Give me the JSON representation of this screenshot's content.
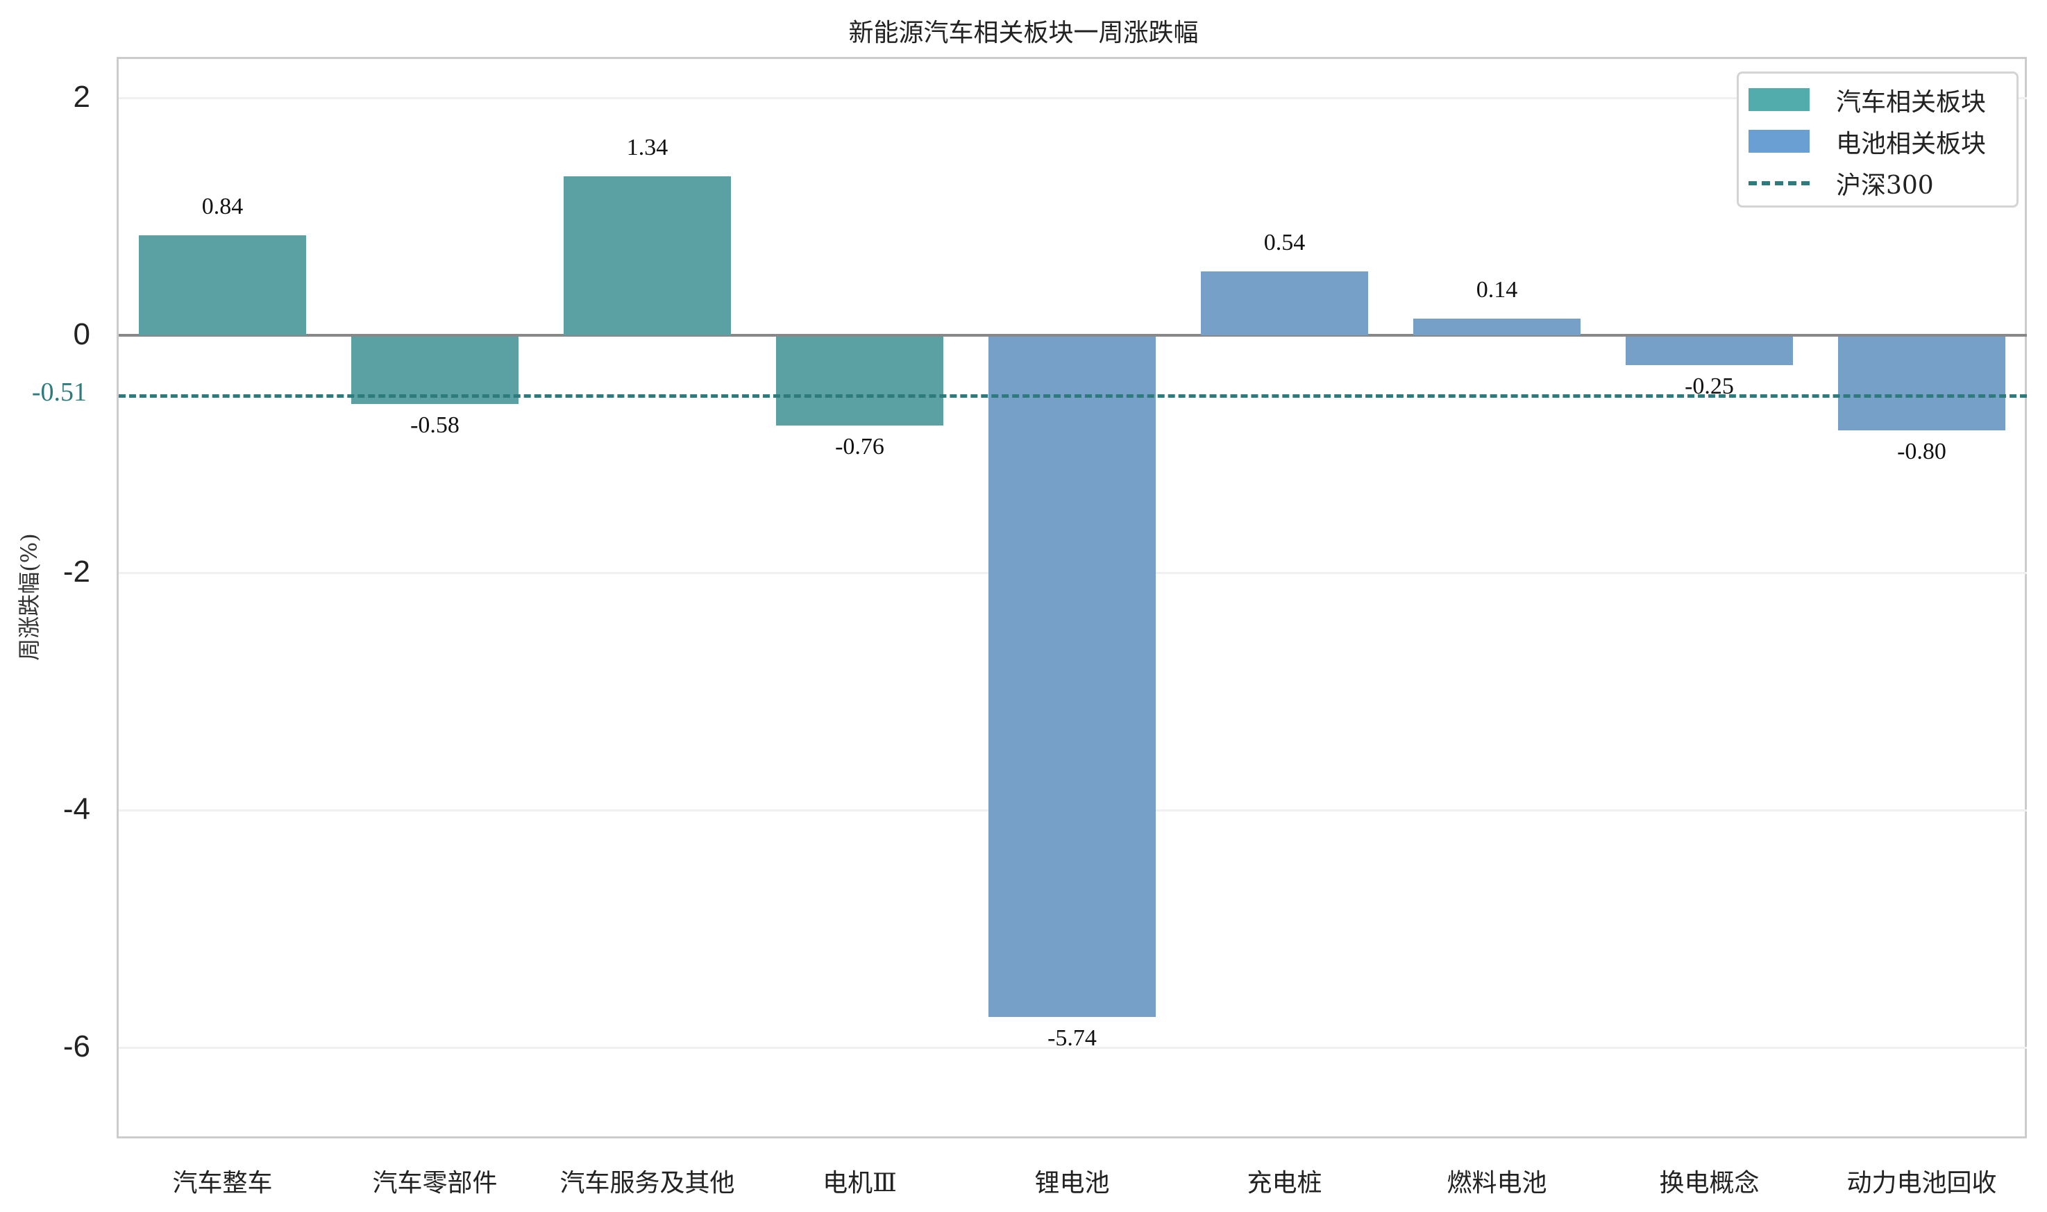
{
  "chart_data": {
    "type": "bar",
    "title": "新能源汽车相关板块一周涨跌幅",
    "xlabel": "",
    "ylabel": "周涨跌幅(%)",
    "ylim": [
      -6.7,
      2.4
    ],
    "yticks": [
      "2",
      "0",
      "-2",
      "-4",
      "-6"
    ],
    "grid": true,
    "legend_position": "upper right",
    "categories": [
      "汽车整车",
      "汽车零部件",
      "汽车服务及其他",
      "电机Ⅲ",
      "锂电池",
      "充电桩",
      "燃料电池",
      "换电概念",
      "动力电池回收"
    ],
    "values": [
      0.84,
      -0.58,
      1.34,
      -0.76,
      -5.74,
      0.54,
      0.14,
      -0.25,
      -0.8
    ],
    "value_labels": [
      "0.84",
      "-0.58",
      "1.34",
      "-0.76",
      "-5.74",
      "0.54",
      "0.14",
      "-0.25",
      "-0.80"
    ],
    "groups": [
      "汽车相关板块",
      "汽车相关板块",
      "汽车相关板块",
      "汽车相关板块",
      "电池相关板块",
      "电池相关板块",
      "电池相关板块",
      "电池相关板块",
      "电池相关板块"
    ],
    "series": [
      {
        "name": "汽车相关板块",
        "categories": [
          "汽车整车",
          "汽车零部件",
          "汽车服务及其他",
          "电机Ⅲ"
        ],
        "values": [
          0.84,
          -0.58,
          1.34,
          -0.76
        ],
        "color": "#5ba1a4"
      },
      {
        "name": "电池相关板块",
        "categories": [
          "锂电池",
          "充电桩",
          "燃料电池",
          "换电概念",
          "动力电池回收"
        ],
        "values": [
          -5.74,
          0.54,
          0.14,
          -0.25,
          -0.8
        ],
        "color": "#76a0c8"
      }
    ],
    "reference_line": {
      "name": "沪深300",
      "value": -0.51,
      "label": "-0.51",
      "style": "dashed",
      "color": "#2e7b7d"
    }
  },
  "legend": {
    "items": [
      {
        "label": "汽车相关板块",
        "color": "#52acac"
      },
      {
        "label": "电池相关板块",
        "color": "#6a9fd4"
      },
      {
        "label": "沪深300",
        "color": "#2e7b7d"
      }
    ]
  },
  "colors": {
    "auto": "#5ba1a4",
    "battery": "#76a0c8",
    "reference": "#2e7b7d",
    "zero_line": "#888888",
    "frame": "#cccccc"
  }
}
